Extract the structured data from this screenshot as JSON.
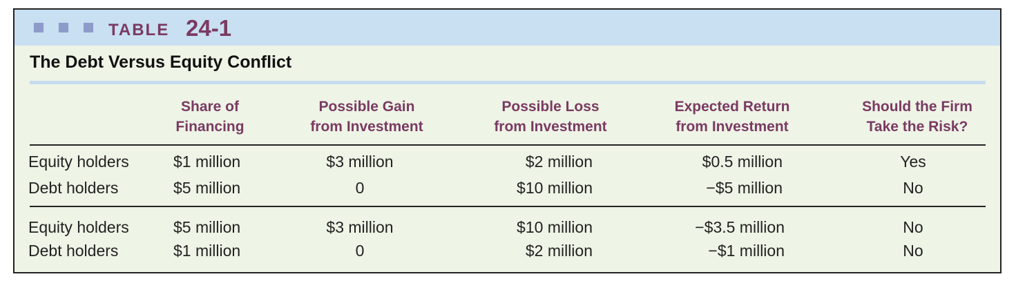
{
  "table": {
    "label_word": "TABLE",
    "label_number": "24-1",
    "title": "The Debt Versus Equity Conflict",
    "headers": [
      [
        "Share of",
        "Financing"
      ],
      [
        "Possible Gain",
        "from Investment"
      ],
      [
        "Possible Loss",
        "from Investment"
      ],
      [
        "Expected Return",
        "from Investment"
      ],
      [
        "Should the Firm",
        "Take the Risk?"
      ]
    ],
    "groups": [
      [
        {
          "label": "Equity holders",
          "cells": [
            "$1 million",
            "$3 million",
            "$2 million",
            "$0.5 million",
            "Yes"
          ]
        },
        {
          "label": "Debt holders",
          "cells": [
            "$5 million",
            "0",
            "$10 million",
            "−$5 million",
            "No"
          ]
        }
      ],
      [
        {
          "label": "Equity holders",
          "cells": [
            "$5 million",
            "$3 million",
            "$10 million",
            "−$3.5 million",
            "No"
          ]
        },
        {
          "label": "Debt holders",
          "cells": [
            "$1 million",
            "0",
            "$2 million",
            "−$1 million",
            "No"
          ]
        }
      ]
    ]
  },
  "colors": {
    "header_band": "#c9dff2",
    "accent": "#7a3a62",
    "body_bg": "#eef4e6",
    "squares": "#8d9bc9"
  }
}
